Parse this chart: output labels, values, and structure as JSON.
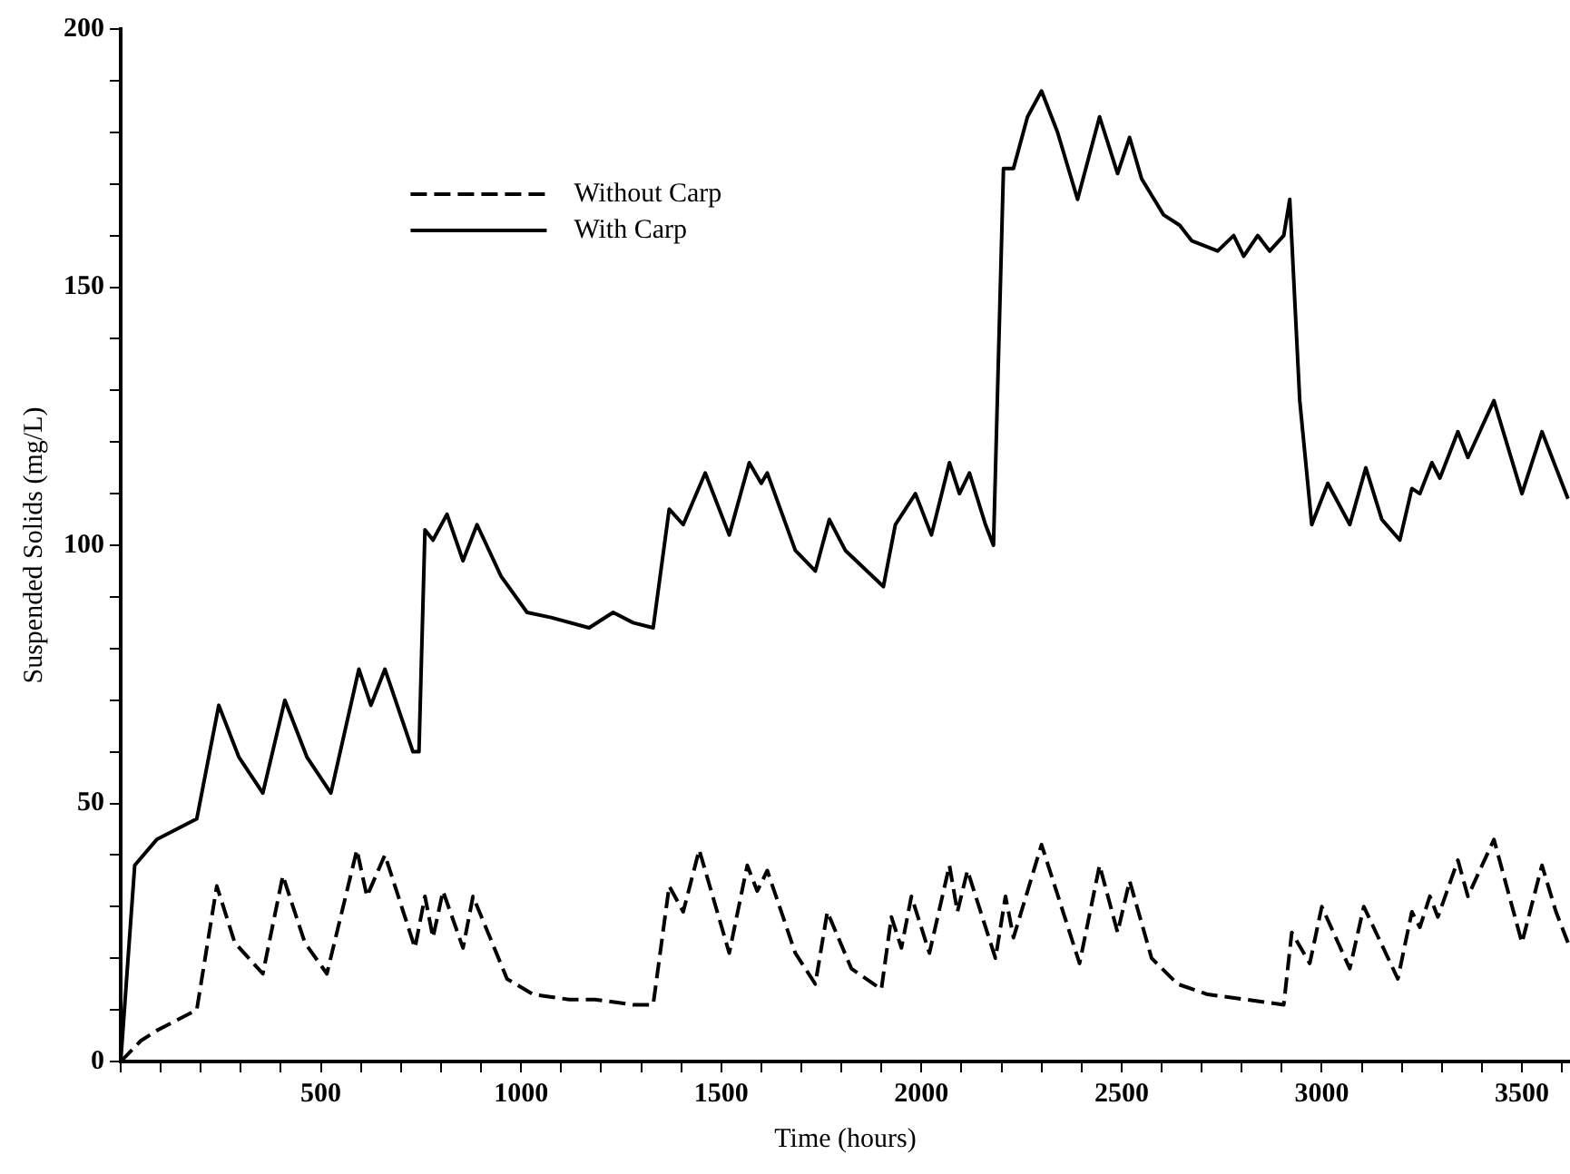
{
  "chart_data": {
    "type": "line",
    "xlabel": "Time (hours)",
    "ylabel": "Suspended Solids (mg/L)",
    "xlim": [
      0,
      3620
    ],
    "ylim": [
      0,
      200
    ],
    "xticks": [
      {
        "value": 0,
        "label": null
      },
      {
        "value": 100,
        "label": null
      },
      {
        "value": 200,
        "label": null
      },
      {
        "value": 300,
        "label": null
      },
      {
        "value": 400,
        "label": null
      },
      500,
      {
        "value": 600,
        "label": null
      },
      {
        "value": 700,
        "label": null
      },
      {
        "value": 800,
        "label": null
      },
      {
        "value": 900,
        "label": null
      },
      1000,
      {
        "value": 1100,
        "label": null
      },
      {
        "value": 1200,
        "label": null
      },
      {
        "value": 1300,
        "label": null
      },
      {
        "value": 1400,
        "label": null
      },
      1500,
      {
        "value": 1600,
        "label": null
      },
      {
        "value": 1700,
        "label": null
      },
      {
        "value": 1800,
        "label": null
      },
      {
        "value": 1900,
        "label": null
      },
      2000,
      {
        "value": 2100,
        "label": null
      },
      {
        "value": 2200,
        "label": null
      },
      {
        "value": 2300,
        "label": null
      },
      {
        "value": 2400,
        "label": null
      },
      2500,
      {
        "value": 2600,
        "label": null
      },
      {
        "value": 2700,
        "label": null
      },
      {
        "value": 2800,
        "label": null
      },
      {
        "value": 2900,
        "label": null
      },
      3000,
      {
        "value": 3100,
        "label": null
      },
      {
        "value": 3200,
        "label": null
      },
      {
        "value": 3300,
        "label": null
      },
      {
        "value": 3400,
        "label": null
      },
      3500,
      {
        "value": 3600,
        "label": null
      }
    ],
    "yticks": [
      0,
      {
        "value": 10,
        "label": null
      },
      {
        "value": 20,
        "label": null
      },
      {
        "value": 30,
        "label": null
      },
      {
        "value": 40,
        "label": null
      },
      50,
      {
        "value": 60,
        "label": null
      },
      {
        "value": 70,
        "label": null
      },
      {
        "value": 80,
        "label": null
      },
      {
        "value": 90,
        "label": null
      },
      100,
      {
        "value": 110,
        "label": null
      },
      {
        "value": 120,
        "label": null
      },
      {
        "value": 130,
        "label": null
      },
      {
        "value": 140,
        "label": null
      },
      150,
      {
        "value": 160,
        "label": null
      },
      {
        "value": 170,
        "label": null
      },
      {
        "value": 180,
        "label": null
      },
      {
        "value": 190,
        "label": null
      },
      200
    ],
    "grid": false,
    "legend": "top left",
    "marker": "none",
    "series": [
      {
        "name": "Without Carp",
        "color": "#000000",
        "line_style": "dashed",
        "x": [
          0,
          50,
          90,
          190,
          240,
          285,
          355,
          405,
          460,
          515,
          590,
          615,
          660,
          735,
          760,
          780,
          805,
          855,
          880,
          965,
          1030,
          1120,
          1185,
          1280,
          1330,
          1370,
          1405,
          1445,
          1520,
          1565,
          1590,
          1615,
          1685,
          1735,
          1765,
          1825,
          1900,
          1925,
          1950,
          1975,
          2020,
          2070,
          2090,
          2115,
          2185,
          2210,
          2230,
          2300,
          2395,
          2445,
          2490,
          2520,
          2575,
          2640,
          2715,
          2810,
          2905,
          2925,
          2970,
          3000,
          3070,
          3105,
          3190,
          3225,
          3245,
          3270,
          3290,
          3340,
          3365,
          3430,
          3500,
          3550,
          3585,
          3615
        ],
        "values": [
          0,
          4,
          6,
          10,
          34,
          23,
          17,
          36,
          23,
          17,
          41,
          32,
          40,
          22,
          32,
          24,
          33,
          22,
          32,
          16,
          13,
          12,
          12,
          11,
          11,
          34,
          29,
          41,
          21,
          38,
          33,
          37,
          21,
          15,
          29,
          18,
          14,
          28,
          22,
          32,
          21,
          38,
          29,
          37,
          20,
          32,
          24,
          42,
          19,
          38,
          25,
          35,
          20,
          15,
          13,
          12,
          11,
          25,
          19,
          30,
          18,
          30,
          16,
          29,
          26,
          32,
          28,
          39,
          32,
          43,
          23,
          38,
          29,
          23
        ]
      },
      {
        "name": "With Carp",
        "color": "#000000",
        "line_style": "solid",
        "x": [
          0,
          35,
          90,
          190,
          245,
          295,
          355,
          410,
          465,
          525,
          595,
          625,
          660,
          730,
          745,
          760,
          780,
          815,
          855,
          890,
          950,
          1015,
          1075,
          1170,
          1230,
          1280,
          1330,
          1370,
          1405,
          1460,
          1520,
          1570,
          1600,
          1615,
          1685,
          1735,
          1770,
          1810,
          1905,
          1935,
          1985,
          2025,
          2070,
          2095,
          2120,
          2160,
          2180,
          2205,
          2230,
          2265,
          2300,
          2340,
          2390,
          2445,
          2490,
          2520,
          2550,
          2605,
          2645,
          2675,
          2740,
          2780,
          2805,
          2840,
          2870,
          2905,
          2920,
          2945,
          2975,
          3015,
          3070,
          3110,
          3150,
          3195,
          3225,
          3245,
          3275,
          3295,
          3340,
          3365,
          3430,
          3500,
          3550,
          3585,
          3615
        ],
        "values": [
          0,
          38,
          43,
          47,
          69,
          59,
          52,
          70,
          59,
          52,
          76,
          69,
          76,
          60,
          60,
          103,
          101,
          106,
          97,
          104,
          94,
          87,
          86,
          84,
          87,
          85,
          84,
          107,
          104,
          114,
          102,
          116,
          112,
          114,
          99,
          95,
          105,
          99,
          92,
          104,
          110,
          102,
          116,
          110,
          114,
          104,
          100,
          173,
          173,
          183,
          188,
          180,
          167,
          183,
          172,
          179,
          171,
          164,
          162,
          159,
          157,
          160,
          156,
          160,
          157,
          160,
          167,
          128,
          104,
          112,
          104,
          115,
          105,
          101,
          111,
          110,
          116,
          113,
          122,
          117,
          128,
          110,
          122,
          115,
          109
        ]
      }
    ]
  }
}
